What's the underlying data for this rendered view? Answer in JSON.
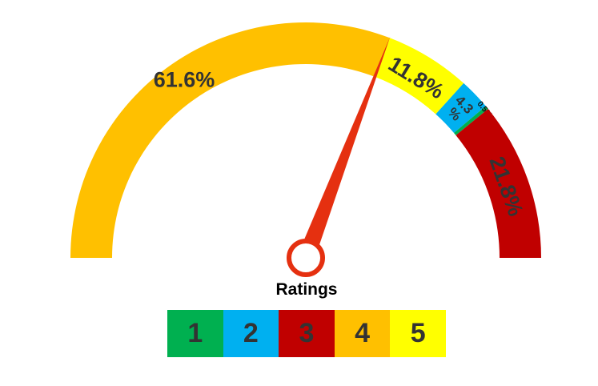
{
  "chart_data": {
    "type": "gauge",
    "title": "",
    "segments": [
      {
        "label": "61.6%",
        "value": 61.6,
        "color": "#FFC000",
        "rating": "4"
      },
      {
        "label": "11.8%",
        "value": 11.8,
        "color": "#FFFF00",
        "rating": "5"
      },
      {
        "label": "4.3%",
        "value": 4.3,
        "color": "#00B0F0",
        "rating": "2"
      },
      {
        "label": "0.5%",
        "value": 0.5,
        "color": "#00B050",
        "rating": "1"
      },
      {
        "label": "21.8%",
        "value": 21.8,
        "color": "#C00000",
        "rating": "3"
      }
    ],
    "needle_value": 61.6,
    "needle_color": "#E53010",
    "legend": {
      "title": "Ratings",
      "items": [
        {
          "label": "1",
          "color": "#00B050"
        },
        {
          "label": "2",
          "color": "#00B0F0"
        },
        {
          "label": "3",
          "color": "#C00000"
        },
        {
          "label": "4",
          "color": "#FFC000"
        },
        {
          "label": "5",
          "color": "#FFFF00"
        }
      ]
    }
  }
}
